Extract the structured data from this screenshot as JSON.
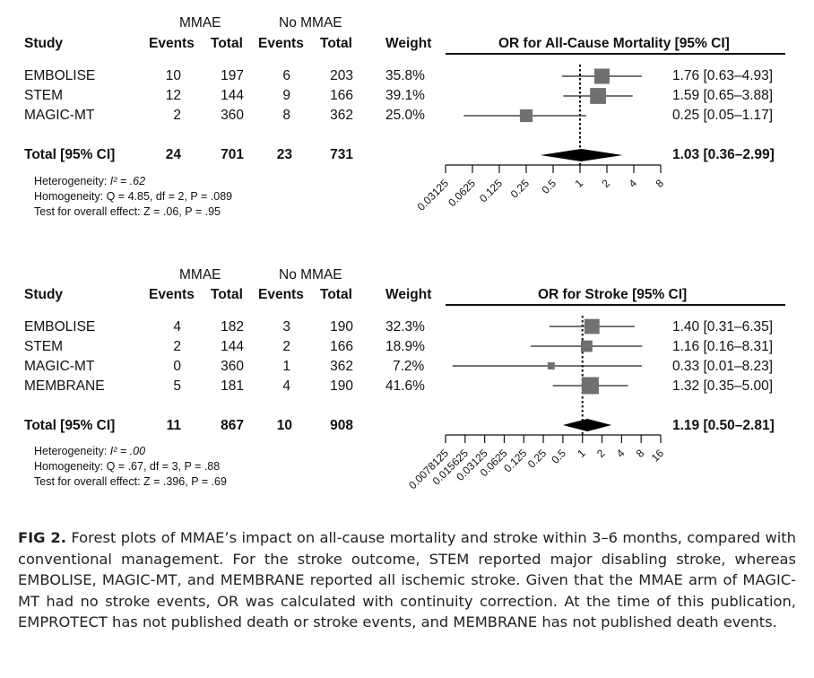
{
  "panels": [
    {
      "group_left": "MMAE",
      "group_right": "No MMAE",
      "headers": [
        "Study",
        "Events",
        "Total",
        "Events",
        "Total",
        "Weight"
      ],
      "plot_title": "OR for All-Cause Mortality [95% CI]",
      "rows": [
        {
          "study": "EMBOLISE",
          "e1": "10",
          "t1": "197",
          "e2": "6",
          "t2": "203",
          "weight": "35.8%",
          "ci_text": "1.76 [0.63–4.93]"
        },
        {
          "study": "STEM",
          "e1": "12",
          "t1": "144",
          "e2": "9",
          "t2": "166",
          "weight": "39.1%",
          "ci_text": "1.59 [0.65–3.88]"
        },
        {
          "study": "MAGIC-MT",
          "e1": "2",
          "t1": "360",
          "e2": "8",
          "t2": "362",
          "weight": "25.0%",
          "ci_text": "0.25 [0.05–1.17]"
        }
      ],
      "total": {
        "study": "Total [95% CI]",
        "e1": "24",
        "t1": "701",
        "e2": "23",
        "t2": "731",
        "ci_text": "1.03 [0.36–2.99]"
      },
      "stats": {
        "heterogeneity_label": "Heterogeneity: ",
        "heterogeneity_value": "I² = .62",
        "homogeneity_label": "Homogeneity: ",
        "homogeneity_value": "Q = 4.85, df = 2, P = .089",
        "overall_label": "Test for overall effect: ",
        "overall_value": "Z = .06, P = .95"
      },
      "ticks": [
        "0.03125",
        "0.0625",
        "0.125",
        "0.25",
        "0.5",
        "1",
        "2",
        "4",
        "8"
      ]
    },
    {
      "group_left": "MMAE",
      "group_right": "No MMAE",
      "headers": [
        "Study",
        "Events",
        "Total",
        "Events",
        "Total",
        "Weight"
      ],
      "plot_title": "OR for Stroke [95% CI]",
      "rows": [
        {
          "study": "EMBOLISE",
          "e1": "4",
          "t1": "182",
          "e2": "3",
          "t2": "190",
          "weight": "32.3%",
          "ci_text": "1.40 [0.31–6.35]"
        },
        {
          "study": "STEM",
          "e1": "2",
          "t1": "144",
          "e2": "2",
          "t2": "166",
          "weight": "18.9%",
          "ci_text": "1.16 [0.16–8.31]"
        },
        {
          "study": "MAGIC-MT",
          "e1": "0",
          "t1": "360",
          "e2": "1",
          "t2": "362",
          "weight": "7.2%",
          "ci_text": "0.33 [0.01–8.23]"
        },
        {
          "study": "MEMBRANE",
          "e1": "5",
          "t1": "181",
          "e2": "4",
          "t2": "190",
          "weight": "41.6%",
          "ci_text": "1.32 [0.35–5.00]"
        }
      ],
      "total": {
        "study": "Total [95% CI]",
        "e1": "11",
        "t1": "867",
        "e2": "10",
        "t2": "908",
        "ci_text": "1.19 [0.50–2.81]"
      },
      "stats": {
        "heterogeneity_label": "Heterogeneity: ",
        "heterogeneity_value": "I² = .00",
        "homogeneity_label": "Homogeneity: ",
        "homogeneity_value": "Q =  .67, df = 3, P = .88",
        "overall_label": "Test for overall effect: ",
        "overall_value": "Z = .396, P = .69"
      },
      "ticks": [
        "0.0078125",
        "0.015625",
        "0.03125",
        "0.0625",
        "0.125",
        "0.25",
        "0.5",
        "1",
        "2",
        "4",
        "8",
        "16"
      ]
    }
  ],
  "caption": {
    "label": "FIG 2.",
    "text": "Forest plots of MMAE’s impact on all-cause mortality and stroke within 3–6 months, compared with conventional management. For the stroke outcome, STEM reported major disabling stroke, whereas EMBOLISE, MAGIC-MT, and MEMBRANE reported all ischemic stroke. Given that the MMAE arm of MAGIC-MT had no stroke events, OR was calculated with continuity correction. At the time of this publication, EMPROTECT has not published death or stroke events, and MEMBRANE has not published death events."
  },
  "chart_data": [
    {
      "type": "forest",
      "title": "OR for All-Cause Mortality [95% CI]",
      "xscale": "log2",
      "xlim": [
        0.03125,
        8
      ],
      "reference_line": 1,
      "studies": [
        {
          "name": "EMBOLISE",
          "or": 1.76,
          "lo": 0.63,
          "hi": 4.93,
          "weight": 35.8
        },
        {
          "name": "STEM",
          "or": 1.59,
          "lo": 0.65,
          "hi": 3.88,
          "weight": 39.1
        },
        {
          "name": "MAGIC-MT",
          "or": 0.25,
          "lo": 0.05,
          "hi": 1.17,
          "weight": 25.0
        }
      ],
      "pooled": {
        "or": 1.03,
        "lo": 0.36,
        "hi": 2.99
      },
      "x_ticks": [
        0.03125,
        0.0625,
        0.125,
        0.25,
        0.5,
        1,
        2,
        4,
        8
      ]
    },
    {
      "type": "forest",
      "title": "OR for Stroke [95% CI]",
      "xscale": "log2",
      "xlim": [
        0.0078125,
        16
      ],
      "reference_line": 1,
      "studies": [
        {
          "name": "EMBOLISE",
          "or": 1.4,
          "lo": 0.31,
          "hi": 6.35,
          "weight": 32.3
        },
        {
          "name": "STEM",
          "or": 1.16,
          "lo": 0.16,
          "hi": 8.31,
          "weight": 18.9
        },
        {
          "name": "MAGIC-MT",
          "or": 0.33,
          "lo": 0.01,
          "hi": 8.23,
          "weight": 7.2
        },
        {
          "name": "MEMBRANE",
          "or": 1.32,
          "lo": 0.35,
          "hi": 5.0,
          "weight": 41.6
        }
      ],
      "pooled": {
        "or": 1.19,
        "lo": 0.5,
        "hi": 2.81
      },
      "x_ticks": [
        0.0078125,
        0.015625,
        0.03125,
        0.0625,
        0.125,
        0.25,
        0.5,
        1,
        2,
        4,
        8,
        16
      ]
    }
  ]
}
